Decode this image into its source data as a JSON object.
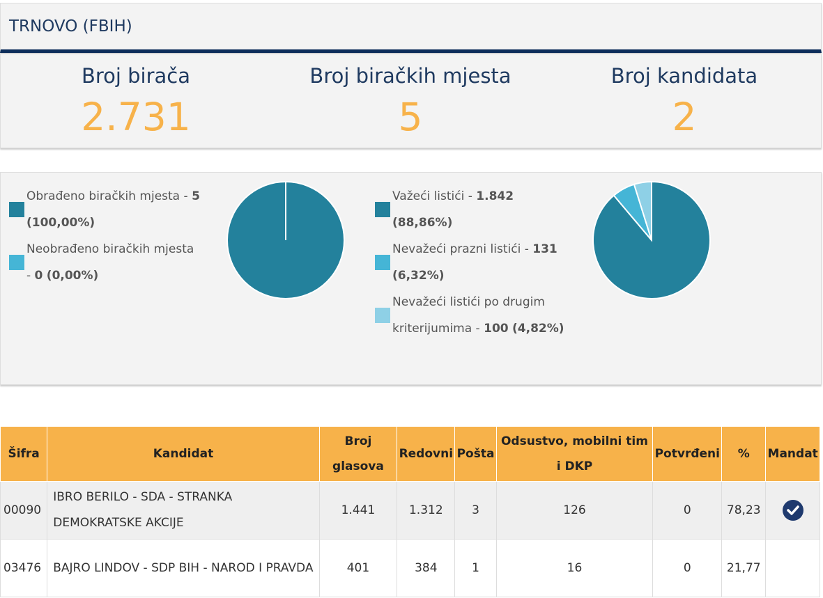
{
  "header": {
    "title": "TRNOVO (FBIH)"
  },
  "stats": [
    {
      "label": "Broj birača",
      "value": "2.731"
    },
    {
      "label": "Broj biračkih mjesta",
      "value": "5"
    },
    {
      "label": "Broj kandidata",
      "value": "2"
    }
  ],
  "chart_data": [
    {
      "type": "pie",
      "labels": [
        "Obrađeno biračkih mjesta -",
        "Neobrađeno biračkih mjesta -"
      ],
      "values": [
        5,
        0
      ],
      "value_labels": [
        "5",
        "0"
      ],
      "percent_labels": [
        "(100,00%)",
        "(0,00%)"
      ],
      "colors": [
        "#23819c",
        "#45b5d6"
      ]
    },
    {
      "type": "pie",
      "labels": [
        "Važeći listići -",
        "Nevažeći prazni listići -",
        "Nevažeći listići po drugim kriterijumima -"
      ],
      "values": [
        1842,
        131,
        100
      ],
      "value_labels": [
        "1.842",
        "131",
        "100"
      ],
      "percent_labels": [
        "(88,86%)",
        "(6,32%)",
        "(4,82%)"
      ],
      "colors": [
        "#23819c",
        "#45b5d6",
        "#8ed0e6"
      ]
    }
  ],
  "table": {
    "headers": [
      "Šifra",
      "Kandidat",
      "Broj glasova",
      "Redovni",
      "Pošta",
      "Odsustvo, mobilni tim i DKP",
      "Potvrđeni",
      "%",
      "Mandat"
    ],
    "rows": [
      [
        "00090",
        "IBRO BERILO - SDA - STRANKA DEMOKRATSKE AKCIJE",
        "1.441",
        "1.312",
        "3",
        "126",
        "0",
        "78,23"
      ],
      [
        "03476",
        "BAJRO LINDOV - SDP BIH - NAROD I PRAVDA",
        "401",
        "384",
        "1",
        "16",
        "0",
        "21,77"
      ]
    ],
    "mandate": [
      true,
      false
    ]
  }
}
